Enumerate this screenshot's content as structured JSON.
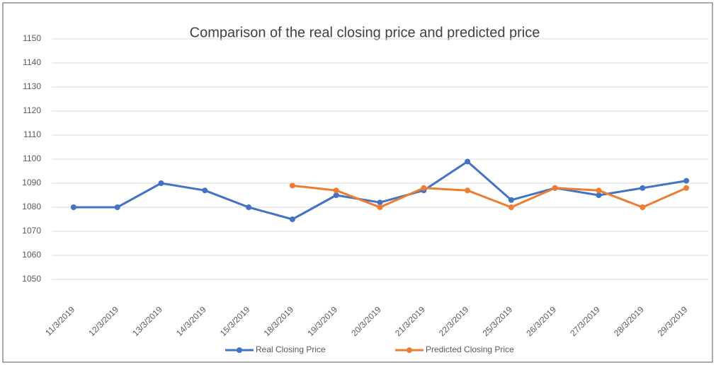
{
  "chart_data": {
    "type": "line",
    "title": "Comparison of the real closing price and predicted price",
    "categories": [
      "11/3/2019",
      "12/3/2019",
      "13/3/2019",
      "14/3/2019",
      "15/3/2019",
      "18/3/2019",
      "19/3/2019",
      "20/3/2019",
      "21/3/2019",
      "22/3/2019",
      "25/3/2019",
      "26/3/2019",
      "27/3/2019",
      "28/3/2019",
      "29/3/2019"
    ],
    "series": [
      {
        "name": "Real Closing Price",
        "color": "#4472c4",
        "values": [
          1080,
          1080,
          1090,
          1087,
          1080,
          1075,
          1085,
          1082,
          1087,
          1099,
          1083,
          1088,
          1085,
          1088,
          1091
        ]
      },
      {
        "name": "Predicted Closing Price",
        "color": "#ed7d31",
        "values": [
          null,
          null,
          null,
          null,
          null,
          1089,
          1087,
          1080,
          1088,
          1087,
          1080,
          1088,
          1087,
          1080,
          1088
        ]
      }
    ],
    "ylim": [
      1040,
      1150
    ],
    "yticks": [
      1050,
      1060,
      1070,
      1080,
      1090,
      1100,
      1110,
      1120,
      1130,
      1140,
      1150
    ],
    "grid": true,
    "legend": "bottom"
  }
}
